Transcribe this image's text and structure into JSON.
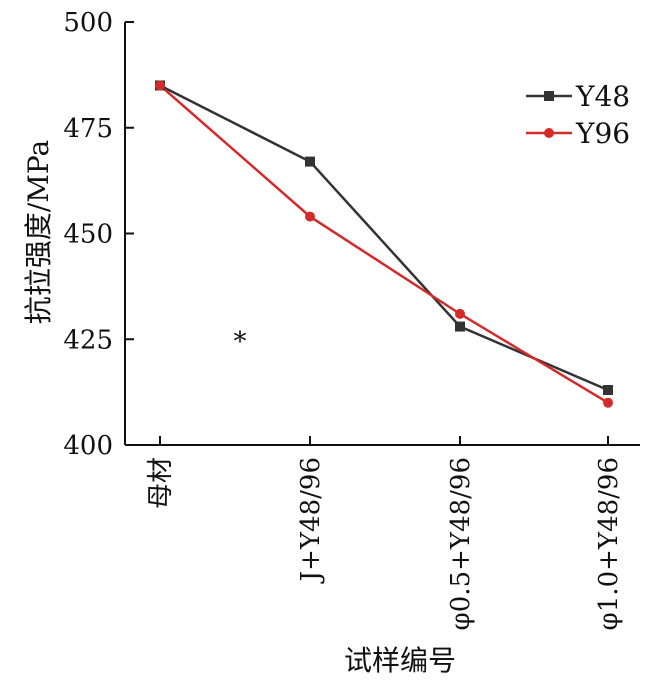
{
  "chart_data": {
    "type": "line",
    "title": "",
    "xlabel": "试样编号",
    "ylabel": "抗拉强度/MPa",
    "categories": [
      "母材",
      "J+Y48/96",
      "φ0.5+Y48/96",
      "φ1.0+Y48/96"
    ],
    "ylim": [
      400,
      500
    ],
    "yticks": [
      "400",
      "425",
      "450",
      "475",
      "500"
    ],
    "grid": false,
    "legend_position": "top-right",
    "annotation": "*",
    "series": [
      {
        "name": "Y48",
        "color": "#333333",
        "marker": "square",
        "values": [
          485,
          467,
          428,
          413
        ]
      },
      {
        "name": "Y96",
        "color": "#d42a2a",
        "marker": "circle",
        "values": [
          485,
          454,
          431,
          410
        ]
      }
    ]
  }
}
